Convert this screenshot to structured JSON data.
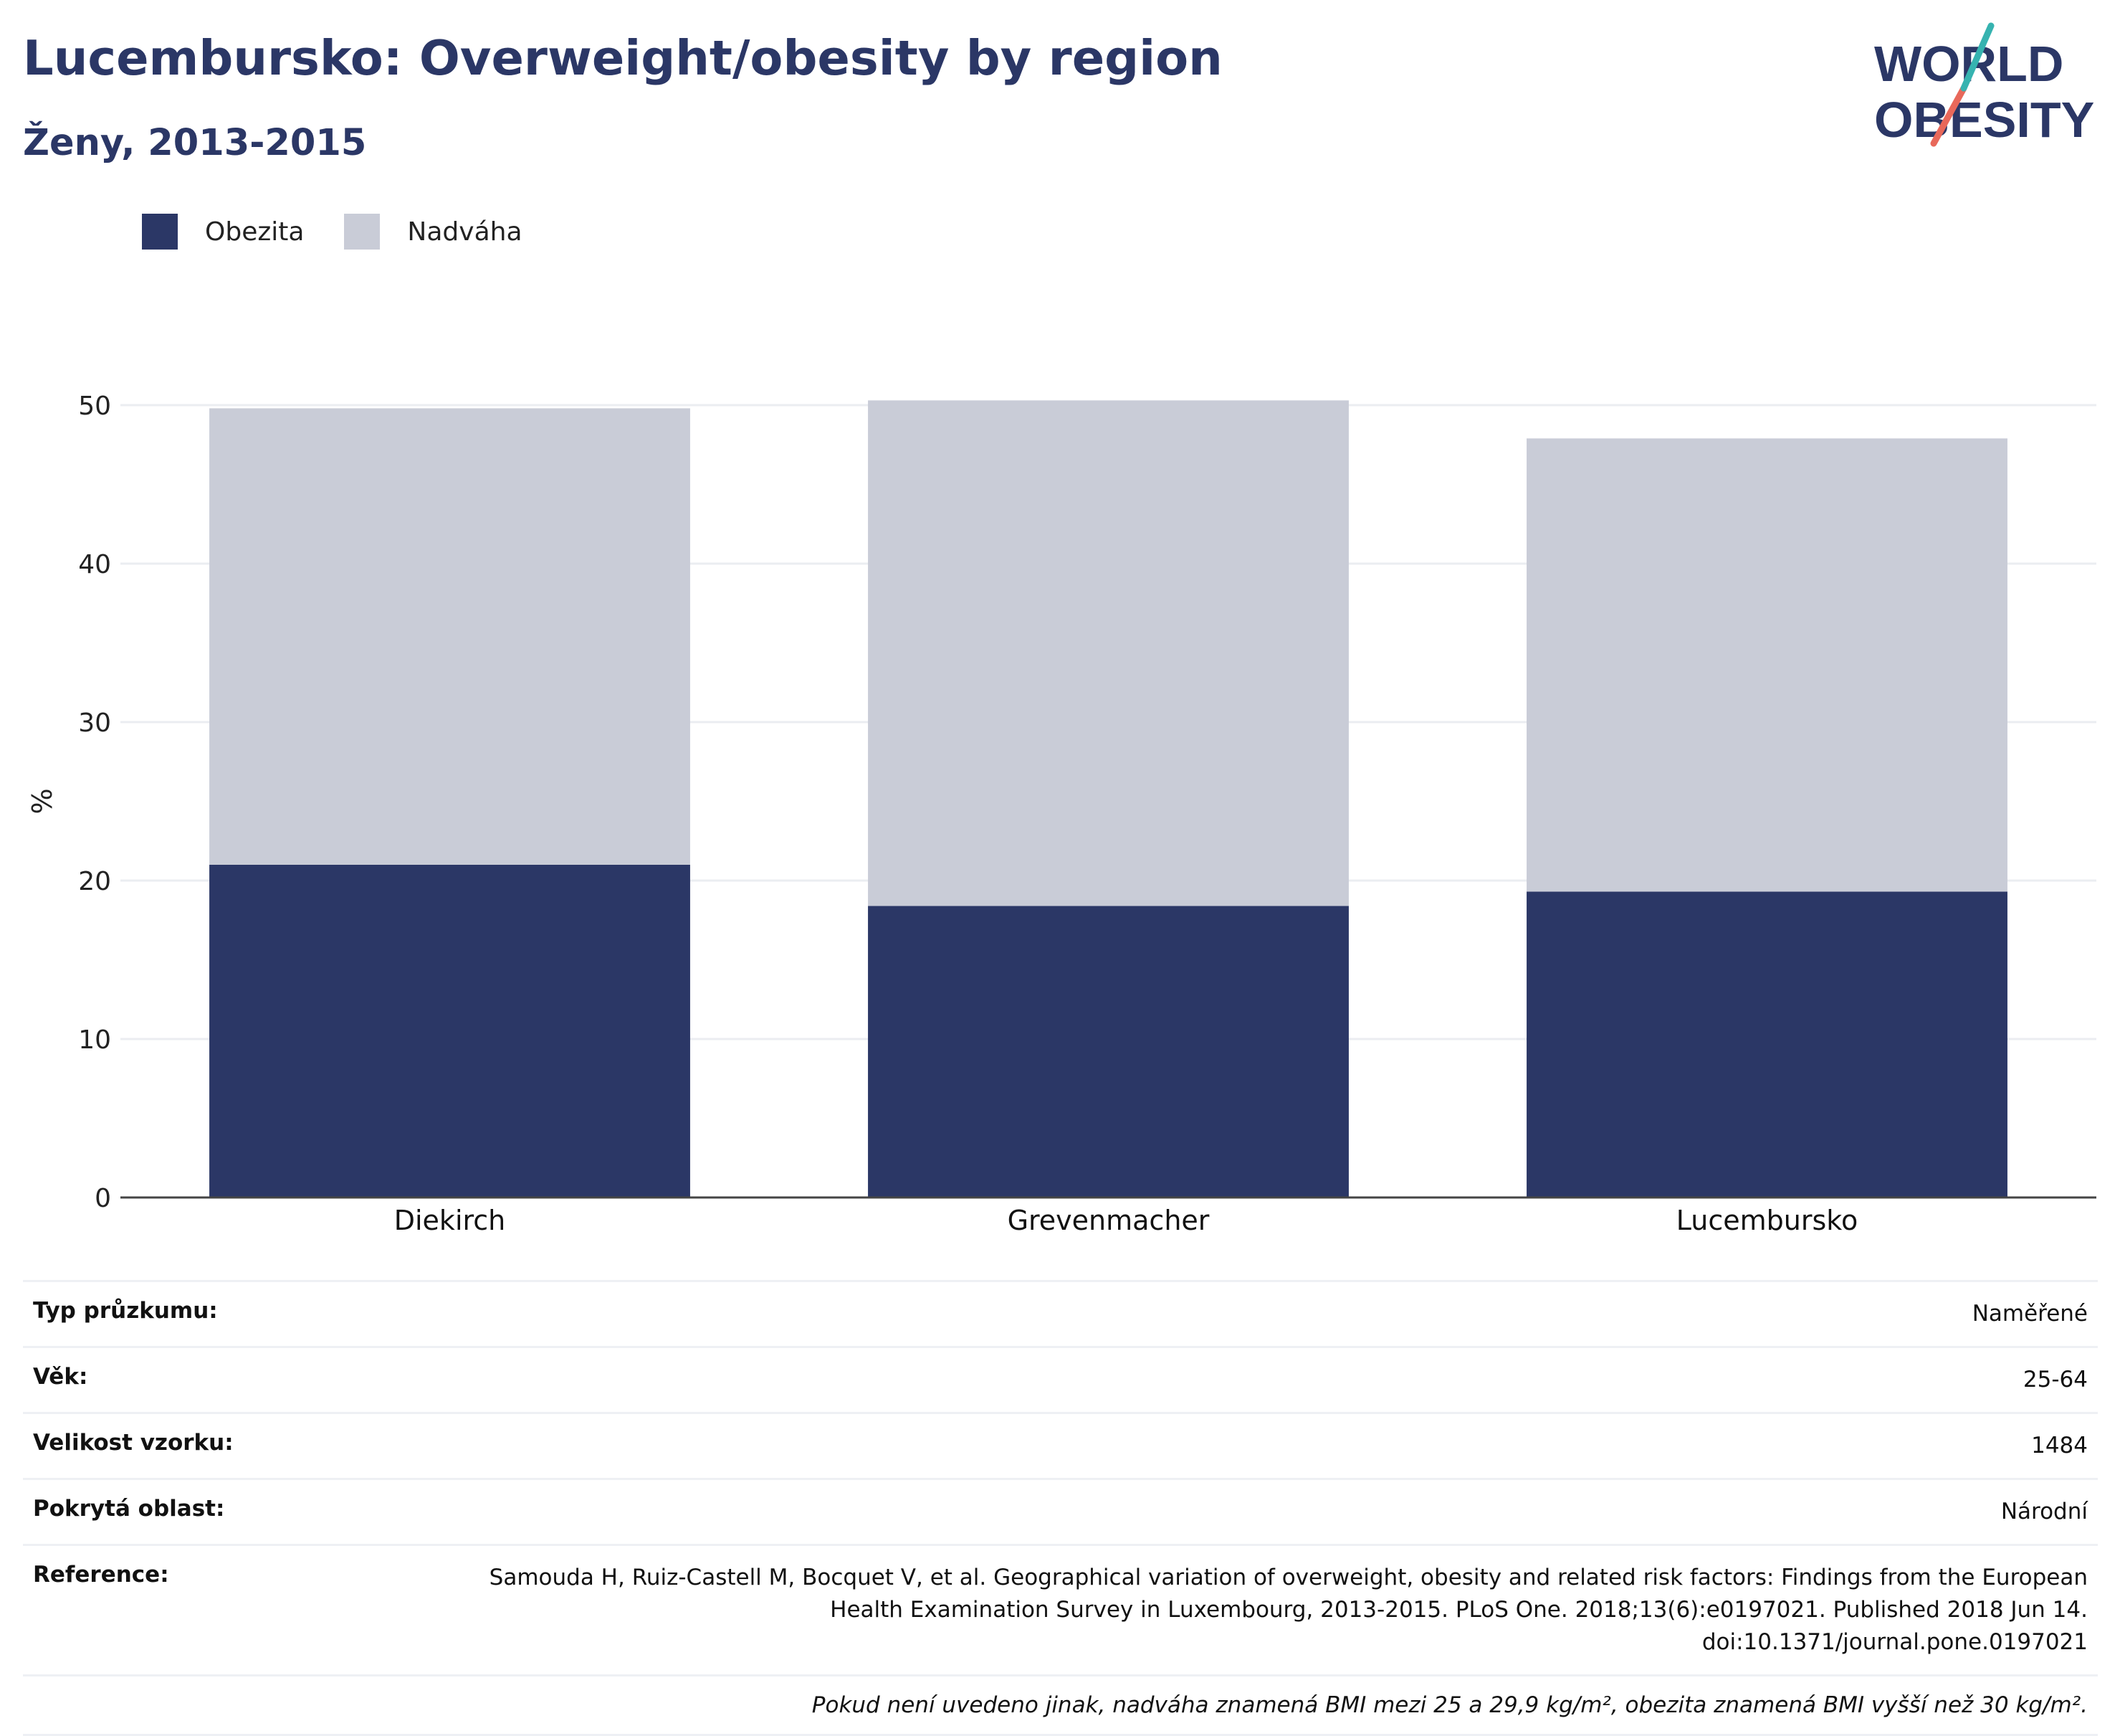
{
  "title": "Lucembursko: Overweight/obesity by region",
  "subtitle": "Ženy, 2013-2015",
  "logo": {
    "line1": "WORLD",
    "line2": "OBESITY",
    "accent_teal": "#36b3b0",
    "accent_red": "#e8685a",
    "text_color": "#2b3766"
  },
  "colors": {
    "obesity": "#2b3766",
    "overweight": "#c9ccd7"
  },
  "legend": [
    {
      "label": "Obezita",
      "color": "#2b3766"
    },
    {
      "label": "Nadváha",
      "color": "#c9ccd7"
    }
  ],
  "chart_data": {
    "type": "bar",
    "stacked": true,
    "categories": [
      "Diekirch",
      "Grevenmacher",
      "Lucembursko"
    ],
    "series": [
      {
        "name": "Obezita",
        "values": [
          21.0,
          18.4,
          19.3
        ]
      },
      {
        "name": "Nadváha",
        "values": [
          28.8,
          31.9,
          28.6
        ]
      }
    ],
    "ylabel": "%",
    "ylim": [
      0,
      50
    ],
    "yticks": [
      0,
      10,
      20,
      30,
      40,
      50
    ],
    "grid": true
  },
  "meta": [
    {
      "key": "Typ průzkumu:",
      "value": "Naměřené"
    },
    {
      "key": "Věk:",
      "value": "25-64"
    },
    {
      "key": "Velikost vzorku:",
      "value": "1484"
    },
    {
      "key": "Pokrytá oblast:",
      "value": "Národní"
    },
    {
      "key": "Reference:",
      "value": "Samouda H, Ruiz-Castell M, Bocquet V, et al. Geographical variation of overweight, obesity and related risk factors: Findings from the European Health Examination Survey in Luxembourg, 2013-2015. PLoS One. 2018;13(6):e0197021. Published 2018 Jun 14. doi:10.1371/journal.pone.0197021"
    }
  ],
  "footnote": "Pokud není uvedeno jinak, nadváha znamená BMI mezi 25 a 29,9 kg/m², obezita znamená BMI vyšší než 30 kg/m²."
}
